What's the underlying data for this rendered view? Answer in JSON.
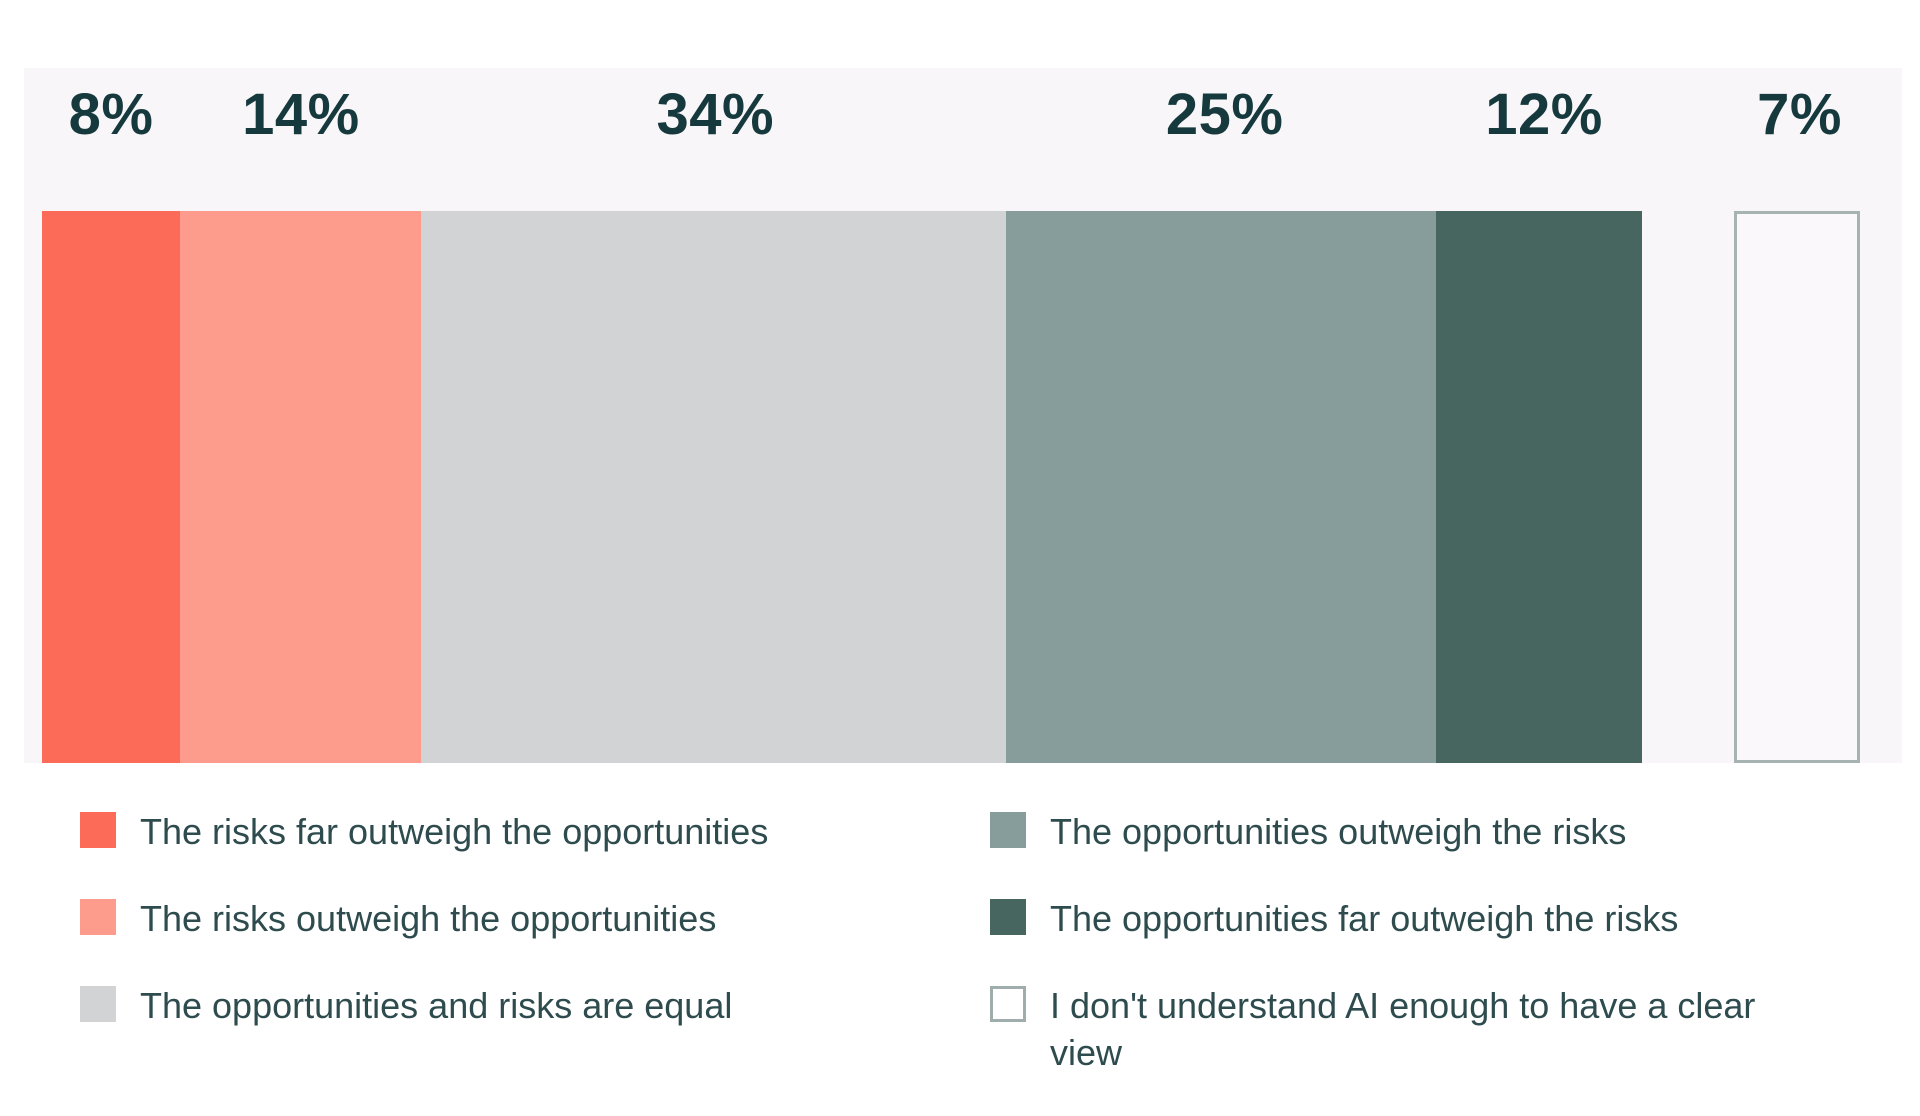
{
  "chart_data": {
    "type": "bar",
    "variant": "horizontal-stacked-100pct",
    "title": "",
    "unit": "%",
    "grid": false,
    "segments": [
      {
        "name": "risks-far-outweigh",
        "label": "The risks far outweigh the opportunities",
        "value": 8,
        "display": "8%",
        "color": "#FB6B57"
      },
      {
        "name": "risks-outweigh",
        "label": "The risks outweigh the opportunities",
        "value": 14,
        "display": "14%",
        "color": "#FD9C8D"
      },
      {
        "name": "risks-equal",
        "label": "The opportunities and risks are equal",
        "value": 34,
        "display": "34%",
        "color": "#D2D3D4"
      },
      {
        "name": "opportunities-outweigh",
        "label": "The opportunities outweigh the risks",
        "value": 25,
        "display": "25%",
        "color": "#879D9B"
      },
      {
        "name": "opportunities-far-outweigh",
        "label": "The opportunities far outweigh the risks",
        "value": 12,
        "display": "12%",
        "color": "#47665F"
      },
      {
        "name": "dont-understand-ai",
        "label": "I don't understand AI enough to have a clear view",
        "value": 7,
        "display": "7%",
        "color": "#FAF8FB",
        "outlined": true,
        "border_color": "#A7B3B1",
        "detached": true
      }
    ],
    "legend": {
      "position": "bottom",
      "columns": [
        {
          "items": [
            {
              "name": "risks-far-outweigh",
              "label": "The risks far outweigh the opportunities",
              "color": "#FB6B57"
            },
            {
              "name": "risks-outweigh",
              "label": "The risks outweigh the opportunities",
              "color": "#FD9C8D"
            },
            {
              "name": "risks-equal",
              "label": "The opportunities and risks are equal",
              "color": "#D2D3D4"
            }
          ]
        },
        {
          "items": [
            {
              "name": "opportunities-outweigh",
              "label": "The opportunities outweigh the risks",
              "color": "#879D9B"
            },
            {
              "name": "opportunities-far-outweigh",
              "label": "The opportunities far outweigh the risks",
              "color": "#47665F"
            },
            {
              "name": "dont-understand-ai",
              "label": "I don't understand AI enough to have a clear view",
              "color": "#FFFFFF",
              "outlined": true,
              "border_color": "#9FAEAC"
            }
          ]
        }
      ]
    },
    "layout": {
      "gap_before_detached_flex": 5.3,
      "chart_background": "#F8F6F8",
      "page_background": "#FFFFFF",
      "value_label_color": "#16393D",
      "legend_text_color": "#2E4B4E"
    }
  }
}
